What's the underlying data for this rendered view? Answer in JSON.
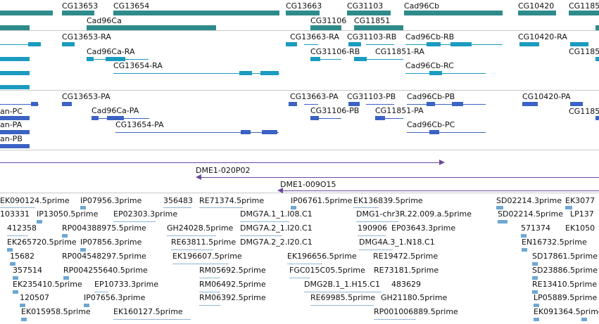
{
  "genes": [
    {
      "label": "CG13653"
    },
    {
      "label": "CG13654"
    },
    {
      "label": "CG13663"
    },
    {
      "label": "CG31103"
    },
    {
      "label": "Cad96Cb"
    },
    {
      "label": "CG10420"
    },
    {
      "label": "CG1185"
    },
    {
      "label": "Cad96Ca"
    },
    {
      "label": "CG31106"
    },
    {
      "label": "CG11851"
    }
  ],
  "transcripts": [
    {
      "label": "CG13653-RA"
    },
    {
      "label": "CG13663-RA"
    },
    {
      "label": "CG31103-RB"
    },
    {
      "label": "Cad96Cb-RB"
    },
    {
      "label": "CG10420-RA"
    },
    {
      "label": "CG1185"
    },
    {
      "label": "Cad96Ca-RA"
    },
    {
      "label": "CG31106-RB"
    },
    {
      "label": "CG11851-RA"
    },
    {
      "label": "CG13654-RA"
    },
    {
      "label": "Cad96Cb-RC"
    }
  ],
  "peptides": [
    {
      "label": "an-PC"
    },
    {
      "label": "CG13653-PA"
    },
    {
      "label": "CG13663-PA"
    },
    {
      "label": "CG31103-PB"
    },
    {
      "label": "Cad96Cb-PB"
    },
    {
      "label": "CG10420-PA"
    },
    {
      "label": "Cad96Ca-PA"
    },
    {
      "label": "CG31106-PB"
    },
    {
      "label": "CG11851-PA"
    },
    {
      "label": "CG1185"
    },
    {
      "label": "an-PA"
    },
    {
      "label": "CG13654-PA"
    },
    {
      "label": "Cad96Cb-PC"
    },
    {
      "label": "an-PB"
    }
  ],
  "clones": [
    {
      "label": "DME1-020P02"
    },
    {
      "label": "DME1-009O15"
    }
  ],
  "ests": [
    {
      "label": "EK090124.5prime"
    },
    {
      "label": "IP07956.3prime"
    },
    {
      "label": "356483"
    },
    {
      "label": "RE71374.5prime"
    },
    {
      "label": "IP06761.5prime"
    },
    {
      "label": "EK136839.5prime"
    },
    {
      "label": "SD02214.3prime"
    },
    {
      "label": "EK3077"
    },
    {
      "label": "103331"
    },
    {
      "label": "IP13050.5prime"
    },
    {
      "label": "EP02303.3prime"
    },
    {
      "label": "DMG7A.1_1.I08.C1"
    },
    {
      "label": "DMG1-chr3R.22.009.a.5prime"
    },
    {
      "label": "SD02214.5prime"
    },
    {
      "label": "LP137"
    },
    {
      "label": "412358"
    },
    {
      "label": "RP004388975.5prime"
    },
    {
      "label": "GH24028.5prime"
    },
    {
      "label": "DMG7A.2_1.I20.C1"
    },
    {
      "label": "190906"
    },
    {
      "label": "EP03643.3prime"
    },
    {
      "label": "571374"
    },
    {
      "label": "EK1050"
    },
    {
      "label": "EK265720.5prime"
    },
    {
      "label": "IP07856.3prime"
    },
    {
      "label": "RE63811.5prime"
    },
    {
      "label": "DMG7A.2_2.I20.C1"
    },
    {
      "label": "DMG4A.3_1.N18.C1"
    },
    {
      "label": "EN16732.5prime"
    },
    {
      "label": "15682"
    },
    {
      "label": "RP004548297.5prime"
    },
    {
      "label": "EK196607.5prime"
    },
    {
      "label": "EK196656.5prime"
    },
    {
      "label": "RE19472.5prime"
    },
    {
      "label": "SD17861.5prime"
    },
    {
      "label": "357514"
    },
    {
      "label": "RP004255640.5prime"
    },
    {
      "label": "RM05692.5prime"
    },
    {
      "label": "FGC015C05.5prime"
    },
    {
      "label": "RE73181.5prime"
    },
    {
      "label": "SD23886.5prime"
    },
    {
      "label": "EK235410.5prime"
    },
    {
      "label": "EP10733.3prime"
    },
    {
      "label": "RM06492.5prime"
    },
    {
      "label": "DMG2B.1_1.H15.C1"
    },
    {
      "label": "483629"
    },
    {
      "label": "RE13410.5prime"
    },
    {
      "label": "120507"
    },
    {
      "label": "IP07656.3prime"
    },
    {
      "label": "RM06392.5prime"
    },
    {
      "label": "RE69985.5prime"
    },
    {
      "label": "GH21180.5prime"
    },
    {
      "label": "LP05889.5prime"
    },
    {
      "label": "EK015958.5prime"
    },
    {
      "label": "EK160127.5prime"
    },
    {
      "label": "RP001006889.5prime"
    },
    {
      "label": "EK091364.5prime"
    }
  ],
  "colors": {
    "gene": "#2e8b8b",
    "transcript": "#1a9bbf",
    "peptide": "#3b62c4",
    "clone": "#6a4aa0",
    "est": "#6ea7d2",
    "separator": "#c8c8c8"
  }
}
